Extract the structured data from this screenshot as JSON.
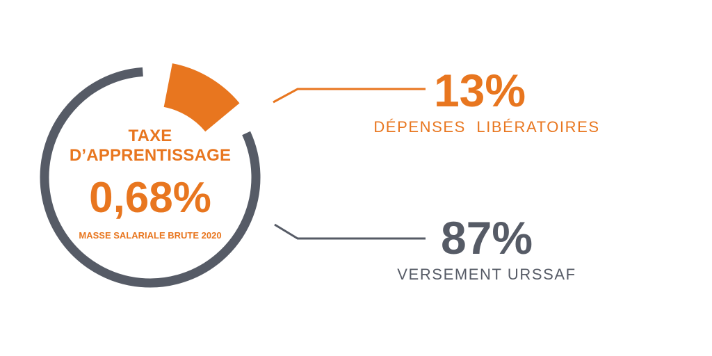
{
  "chart_data": {
    "type": "pie",
    "center": {
      "title_line1": "TAXE",
      "title_line2": "D’APPRENTISSAGE",
      "value": "0,68%",
      "note": "MASSE SALARIALE BRUTE 2020"
    },
    "slices": [
      {
        "label": "DÉPENSES  LIBÉRATOIRES",
        "value": 13,
        "display": "13%",
        "color": "#E8761F"
      },
      {
        "label": "VERSEMENT URSSAF",
        "value": 87,
        "display": "87%",
        "color": "#565B66"
      }
    ]
  },
  "colors": {
    "accent": "#E8761F",
    "ring": "#565B66",
    "background": "#FFFFFF"
  }
}
